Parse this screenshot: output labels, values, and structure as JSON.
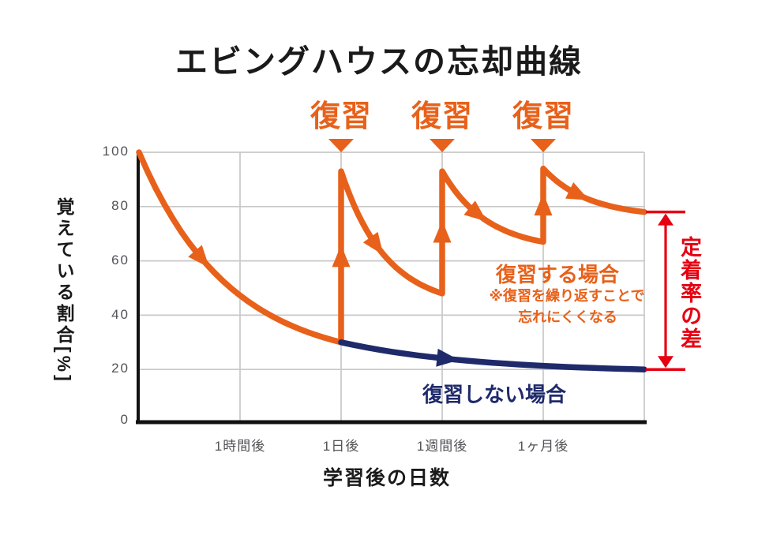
{
  "title": "エビングハウスの忘却曲線",
  "review": {
    "labels": [
      "復習",
      "復習",
      "復習"
    ]
  },
  "axes": {
    "y_title": "覚えている割合[%]",
    "y_ticks": [
      "100",
      "80",
      "60",
      "40",
      "20",
      "0"
    ],
    "x_ticks": [
      "1時間後",
      "1日後",
      "1週間後",
      "1ヶ月後"
    ],
    "x_title": "学習後の日数"
  },
  "annotations": {
    "with_review": "復習する場合",
    "with_review_note1": "※復習を繰り返すことで",
    "with_review_note2": "忘れにくくなる",
    "without_review": "復習しない場合",
    "retention_gap": "定着率の差"
  },
  "colors": {
    "orange": "#e8611a",
    "navy": "#1f2a6b",
    "red": "#e60012",
    "grid": "#c8c8c8",
    "axis": "#111111"
  },
  "chart_data": {
    "type": "line",
    "title": "エビングハウスの忘却曲線",
    "xlabel": "学習後の日数",
    "ylabel": "覚えている割合[%]",
    "ylim": [
      0,
      100
    ],
    "y_ticks": [
      0,
      20,
      40,
      60,
      80,
      100
    ],
    "x_tick_labels": [
      "1時間後",
      "1日後",
      "1週間後",
      "1ヶ月後"
    ],
    "x_axis_units": "0=学習直後, 1=1時間後, 2=1日後, 3=1週間後, 4=1ヶ月後, 5=プロット右端",
    "grid": true,
    "legend_position": "inline-annotations",
    "series": [
      {
        "name": "復習する場合",
        "color": "#e8611a",
        "points": [
          [
            0,
            100
          ],
          [
            2,
            30
          ],
          [
            2,
            93
          ],
          [
            3,
            48
          ],
          [
            3,
            93
          ],
          [
            4,
            67
          ],
          [
            4,
            94
          ],
          [
            5,
            78
          ]
        ],
        "note": "※復習を繰り返すことで忘れにくくなる"
      },
      {
        "name": "復習しない場合",
        "color": "#1f2a6b",
        "points": [
          [
            2,
            30
          ],
          [
            5,
            20
          ]
        ]
      }
    ],
    "review_markers_x": [
      2,
      3,
      4
    ],
    "retention_gap": {
      "label": "定着率の差",
      "from_pct": 78,
      "to_pct": 20
    }
  }
}
